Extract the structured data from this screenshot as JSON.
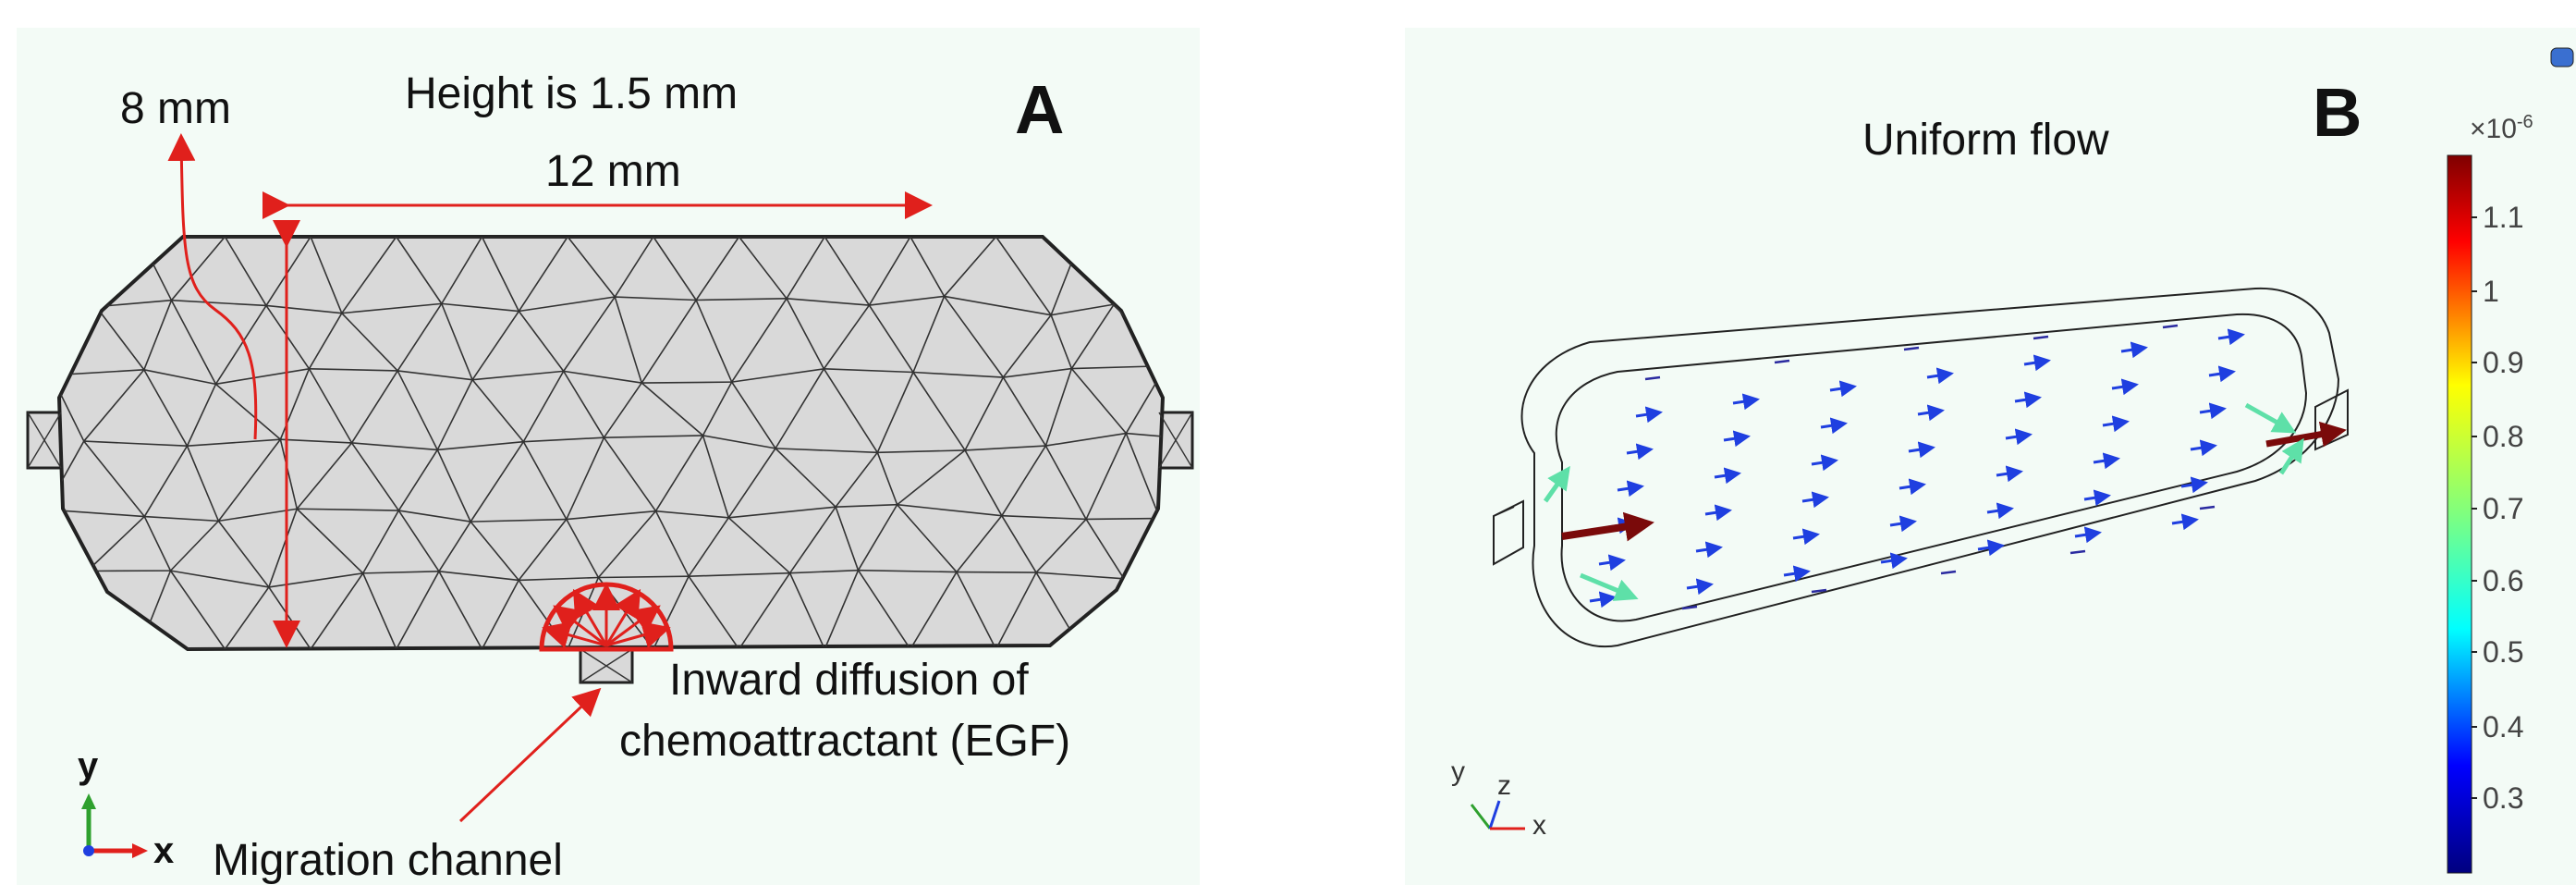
{
  "panel_a": {
    "letter": "A",
    "height_label": "Height is 1.5 mm",
    "width_label": "8 mm",
    "length_label": "12 mm",
    "diffusion_label_1": "Inward diffusion of",
    "diffusion_label_2": "chemoattractant (EGF)",
    "channel_label": "Migration channel",
    "axis_y": "y",
    "axis_x": "x"
  },
  "panel_b": {
    "letter": "B",
    "title": "Uniform flow",
    "axis_y": "y",
    "axis_z": "z",
    "axis_x": "x"
  },
  "colorbar": {
    "exponent": "×10",
    "exponent_power": "-6",
    "ticks": [
      "1.1",
      "1",
      "0.9",
      "0.8",
      "0.7",
      "0.6",
      "0.5",
      "0.4",
      "0.3"
    ]
  },
  "colors": {
    "annotation_red": "#e0201c",
    "mesh_fill": "#d9d9d9",
    "arrow_blue": "#1f3fe0",
    "arrow_cyan": "#5ee0a8",
    "arrow_darkred": "#7a0a0a"
  }
}
